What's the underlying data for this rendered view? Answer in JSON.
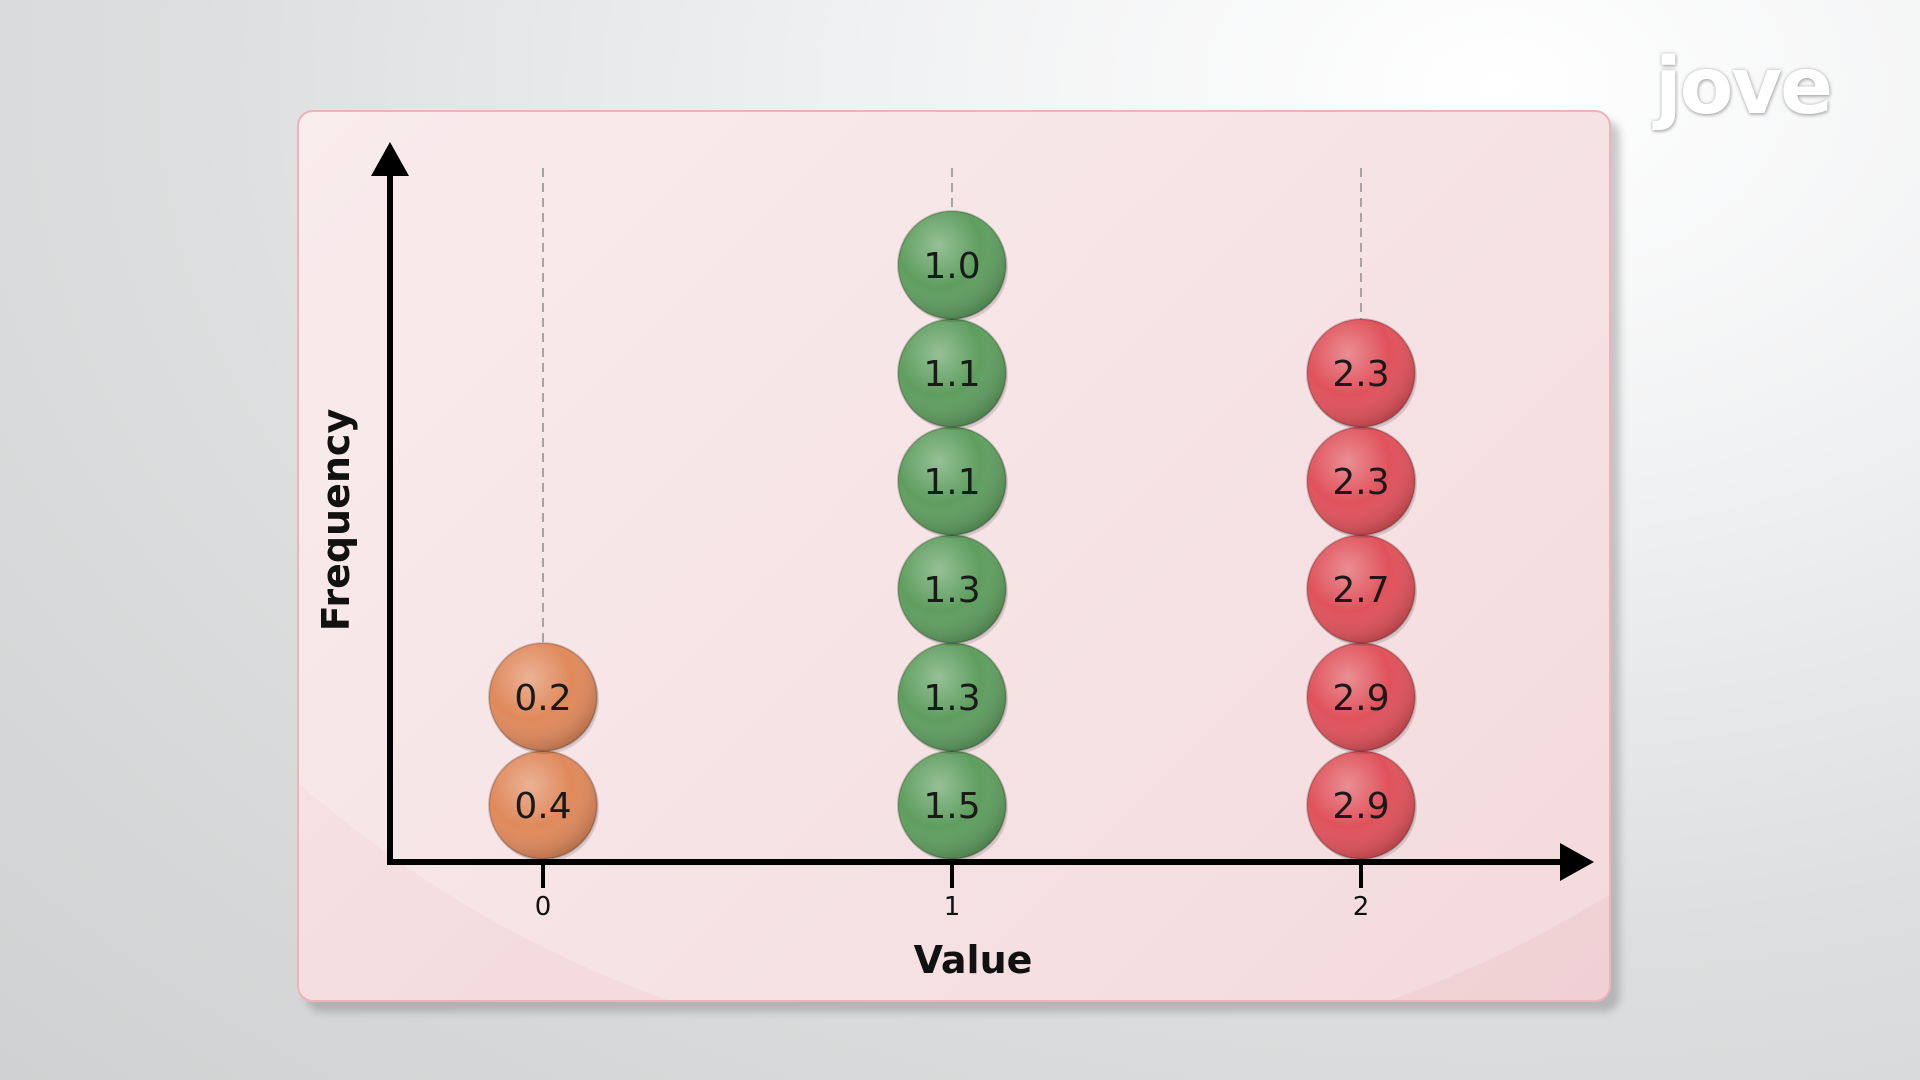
{
  "logo": {
    "text": "jove",
    "dot_color": "#4a90d9"
  },
  "chart_data": {
    "type": "scatter",
    "subtype": "dot-plot",
    "title": "",
    "xlabel": "Value",
    "ylabel": "Frequency",
    "xticks": [
      "0",
      "1",
      "2"
    ],
    "grid": false,
    "legend": "none",
    "series": [
      {
        "x": 0,
        "color": "#e0895c",
        "values": [
          "0.4",
          "0.2"
        ]
      },
      {
        "x": 1,
        "color": "#5f9e5f",
        "values": [
          "1.5",
          "1.3",
          "1.3",
          "1.1",
          "1.1",
          "1.0"
        ]
      },
      {
        "x": 2,
        "color": "#e0525b",
        "values": [
          "2.9",
          "2.9",
          "2.7",
          "2.3",
          "2.3"
        ]
      }
    ]
  }
}
